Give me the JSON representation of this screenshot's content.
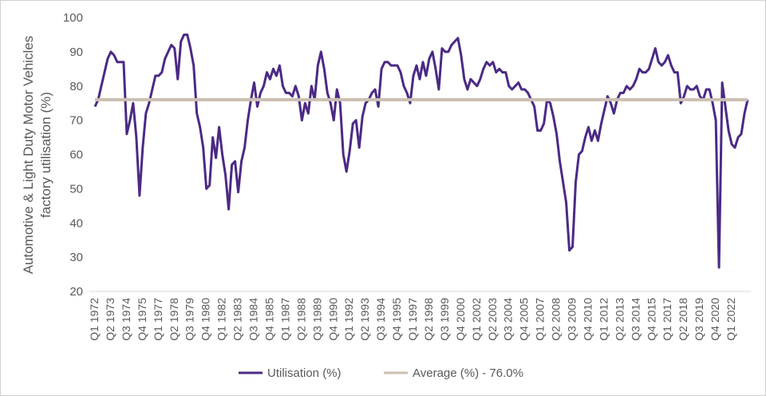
{
  "chart_data": {
    "type": "line",
    "ylabel": [
      "Automotive & Light Duty Motor Vehicles",
      "factory utilisation (%)"
    ],
    "ylim": [
      20,
      100
    ],
    "yticks": [
      20,
      30,
      40,
      50,
      60,
      70,
      80,
      90,
      100
    ],
    "grid": false,
    "legend_placement": "bottom",
    "x_start": "Q1 1972",
    "x_end": "Q1 2023",
    "x_tick_labels": [
      "Q1 1972",
      "Q2 1973",
      "Q3 1974",
      "Q4 1975",
      "Q1 1977",
      "Q2 1978",
      "Q3 1979",
      "Q4 1980",
      "Q1 1982",
      "Q2 1983",
      "Q3 1984",
      "Q4 1985",
      "Q1 1987",
      "Q2 1988",
      "Q3 1989",
      "Q4 1990",
      "Q1 1992",
      "Q2 1993",
      "Q3 1994",
      "Q4 1995",
      "Q1 1997",
      "Q2 1998",
      "Q3 1999",
      "Q4 2000",
      "Q1 2002",
      "Q2 2003",
      "Q3 2004",
      "Q4 2005",
      "Q1 2007",
      "Q2 2008",
      "Q3 2009",
      "Q4 2010",
      "Q1 2012",
      "Q2 2013",
      "Q3 2014",
      "Q4 2015",
      "Q1 2017",
      "Q2 2018",
      "Q3 2019",
      "Q4 2020",
      "Q1 2022"
    ],
    "series": [
      {
        "name": "Utilisation (%)",
        "color": "#4B2A85",
        "values": [
          74,
          76,
          80,
          84,
          88,
          90,
          89,
          87,
          87,
          87,
          66,
          70,
          75,
          65,
          48,
          62,
          72,
          75,
          79,
          83,
          83,
          84,
          88,
          90,
          92,
          91,
          82,
          93,
          95,
          95,
          91,
          86,
          72,
          68,
          62,
          50,
          51,
          65,
          59,
          68,
          60,
          54,
          44,
          57,
          58,
          49,
          58,
          62,
          70,
          76,
          81,
          74,
          78,
          80,
          84,
          82,
          85,
          83,
          86,
          80,
          78,
          78,
          77,
          80,
          77,
          70,
          75,
          72,
          80,
          76,
          86,
          90,
          85,
          78,
          75,
          70,
          79,
          75,
          60,
          55,
          61,
          69,
          70,
          62,
          71,
          75,
          76,
          78,
          79,
          74,
          85,
          87,
          87,
          86,
          86,
          86,
          84,
          80,
          78,
          75,
          83,
          86,
          82,
          87,
          83,
          88,
          90,
          85,
          79,
          91,
          90,
          90,
          92,
          93,
          94,
          89,
          82,
          79,
          82,
          81,
          80,
          82,
          85,
          87,
          86,
          87,
          84,
          85,
          84,
          84,
          80,
          79,
          80,
          81,
          79,
          79,
          78,
          76,
          74,
          67,
          67,
          69,
          76,
          75,
          71,
          66,
          58,
          52,
          46,
          32,
          33,
          52,
          60,
          61,
          65,
          68,
          64,
          67,
          64,
          69,
          73,
          77,
          75,
          72,
          76,
          78,
          78,
          80,
          79,
          80,
          82,
          85,
          84,
          84,
          85,
          88,
          91,
          87,
          86,
          87,
          89,
          86,
          84,
          84,
          75,
          77,
          80,
          79,
          79,
          80,
          77,
          76,
          79,
          79,
          75,
          70,
          27,
          81,
          74,
          67,
          63,
          62,
          65,
          66,
          72,
          76
        ],
        "note_values": "Quarterly values approx. read from chart"
      },
      {
        "name": "Average (%) - 76.0%",
        "color": "#CBBFB2",
        "value": 76.0
      }
    ]
  },
  "legend": {
    "items": [
      {
        "label": "Utilisation (%)",
        "color": "#4B2A85"
      },
      {
        "label": "Average (%) - 76.0%",
        "color": "#CBBFB2"
      }
    ]
  }
}
